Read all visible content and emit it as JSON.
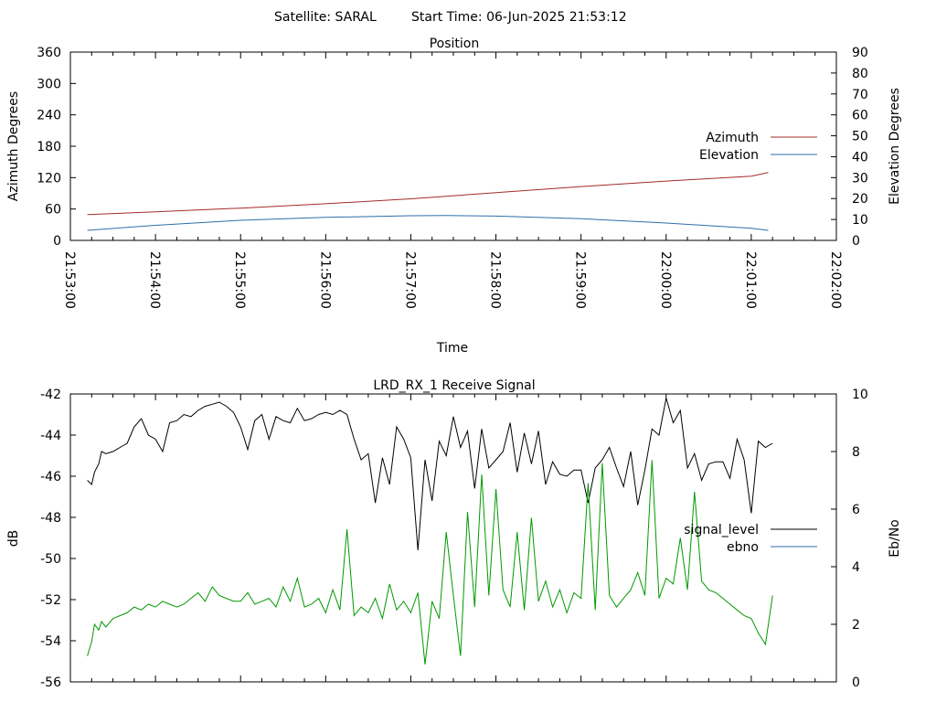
{
  "header": {
    "satellite_label": "Satellite: SARAL",
    "start_time_label": "Start Time: 06-Jun-2025 21:53:12"
  },
  "colors": {
    "azimuth": "#a52a2a",
    "elevation": "#2f6ea8",
    "signal_level": "#000000",
    "ebno": "#009900",
    "ebno_legend": "#2f6ea8",
    "axis": "#000000"
  },
  "chart_data": [
    {
      "type": "line",
      "title": "Position",
      "xlabel": "Time",
      "ylabel": "Azimuth Degrees",
      "y2label": "Elevation Degrees",
      "x_ticks": [
        "21:53:00",
        "21:54:00",
        "21:55:00",
        "21:56:00",
        "21:57:00",
        "21:58:00",
        "21:59:00",
        "22:00:00",
        "22:01:00",
        "22:02:00"
      ],
      "xlim_seconds": [
        0,
        540
      ],
      "ylim": [
        0,
        360
      ],
      "y_ticks": [
        0,
        60,
        120,
        180,
        240,
        300,
        360
      ],
      "y2lim": [
        0,
        90
      ],
      "y2_ticks": [
        0,
        10,
        20,
        30,
        40,
        50,
        60,
        70,
        80,
        90
      ],
      "legend_position": "right",
      "series": [
        {
          "name": "Azimuth",
          "axis": "y",
          "color_key": "azimuth",
          "x_seconds": [
            12,
            60,
            120,
            180,
            240,
            300,
            360,
            420,
            480,
            492
          ],
          "values": [
            49.5,
            54.5,
            61.7,
            70,
            79.5,
            91.2,
            103,
            113.5,
            122.7,
            129.8
          ]
        },
        {
          "name": "Elevation",
          "axis": "y2",
          "color_key": "elevation",
          "x_seconds": [
            12,
            60,
            120,
            180,
            240,
            265,
            300,
            360,
            420,
            480,
            492
          ],
          "values": [
            4.8,
            7.2,
            9.6,
            11.0,
            11.8,
            11.9,
            11.6,
            10.4,
            8.3,
            5.8,
            4.8
          ]
        }
      ]
    },
    {
      "type": "line",
      "title": "LRD_RX_1 Receive Signal",
      "ylabel": "dB",
      "y2label": "Eb/No",
      "xlim_seconds": [
        0,
        540
      ],
      "ylim": [
        -56,
        -42
      ],
      "y_ticks": [
        -56,
        -54,
        -52,
        -50,
        -48,
        -46,
        -44,
        -42
      ],
      "y2lim": [
        0,
        10
      ],
      "y2_ticks": [
        0,
        2,
        4,
        6,
        8,
        10
      ],
      "legend_position": "right",
      "series": [
        {
          "name": "signal_level",
          "axis": "y",
          "color_key": "signal_level",
          "x_seconds": [
            12,
            15,
            17,
            20,
            22,
            25,
            30,
            35,
            40,
            45,
            50,
            55,
            60,
            65,
            70,
            75,
            80,
            85,
            90,
            95,
            100,
            105,
            110,
            115,
            120,
            125,
            130,
            135,
            140,
            145,
            150,
            155,
            160,
            165,
            170,
            175,
            180,
            185,
            190,
            195,
            200,
            205,
            210,
            215,
            220,
            225,
            230,
            235,
            240,
            245,
            250,
            255,
            260,
            265,
            270,
            275,
            280,
            285,
            290,
            295,
            300,
            305,
            310,
            315,
            320,
            325,
            330,
            335,
            340,
            345,
            350,
            355,
            360,
            365,
            370,
            375,
            380,
            385,
            390,
            395,
            400,
            405,
            410,
            415,
            420,
            425,
            430,
            435,
            440,
            445,
            450,
            455,
            460,
            465,
            470,
            475,
            480,
            485,
            490,
            495
          ],
          "values": [
            -46.2,
            -46.4,
            -45.8,
            -45.4,
            -44.8,
            -44.9,
            -44.8,
            -44.6,
            -44.4,
            -43.6,
            -43.2,
            -44.0,
            -44.2,
            -44.8,
            -43.4,
            -43.3,
            -43.0,
            -43.1,
            -42.8,
            -42.6,
            -42.5,
            -42.4,
            -42.6,
            -42.9,
            -43.6,
            -44.7,
            -43.3,
            -43.0,
            -44.2,
            -43.1,
            -43.3,
            -43.4,
            -42.7,
            -43.3,
            -43.2,
            -43.0,
            -42.9,
            -43.0,
            -42.8,
            -43.0,
            -44.2,
            -45.2,
            -44.9,
            -47.3,
            -45.1,
            -46.4,
            -43.6,
            -44.2,
            -45.1,
            -49.6,
            -45.2,
            -47.2,
            -44.3,
            -45.0,
            -43.1,
            -44.6,
            -43.8,
            -46.6,
            -43.7,
            -45.6,
            -45.2,
            -44.8,
            -43.4,
            -45.8,
            -43.9,
            -45.4,
            -43.8,
            -46.4,
            -45.3,
            -45.9,
            -46.0,
            -45.7,
            -45.7,
            -47.3,
            -45.6,
            -45.2,
            -44.6,
            -45.6,
            -46.5,
            -44.8,
            -47.4,
            -45.7,
            -43.7,
            -44.0,
            -42.2,
            -43.4,
            -42.8,
            -45.6,
            -44.9,
            -46.2,
            -45.4,
            -45.3,
            -45.3,
            -46.1,
            -44.2,
            -45.2,
            -47.8,
            -44.3,
            -44.6,
            -44.4
          ]
        },
        {
          "name": "ebno",
          "axis": "y2",
          "color_key": "ebno",
          "legend_color_key": "ebno_legend",
          "x_seconds": [
            12,
            15,
            17,
            20,
            22,
            25,
            30,
            35,
            40,
            45,
            50,
            55,
            60,
            65,
            70,
            75,
            80,
            85,
            90,
            95,
            100,
            105,
            110,
            115,
            120,
            125,
            130,
            135,
            140,
            145,
            150,
            155,
            160,
            165,
            170,
            175,
            180,
            185,
            190,
            195,
            200,
            205,
            210,
            215,
            220,
            225,
            230,
            235,
            240,
            245,
            250,
            255,
            260,
            265,
            270,
            275,
            280,
            285,
            290,
            295,
            300,
            305,
            310,
            315,
            320,
            325,
            330,
            335,
            340,
            345,
            350,
            355,
            360,
            365,
            370,
            375,
            380,
            385,
            390,
            395,
            400,
            405,
            410,
            415,
            420,
            425,
            430,
            435,
            440,
            445,
            450,
            455,
            460,
            465,
            470,
            475,
            480,
            485,
            490,
            495
          ],
          "values": [
            0.9,
            1.4,
            2.0,
            1.8,
            2.1,
            1.9,
            2.2,
            2.3,
            2.4,
            2.6,
            2.5,
            2.7,
            2.6,
            2.8,
            2.7,
            2.6,
            2.7,
            2.9,
            3.1,
            2.8,
            3.3,
            3.0,
            2.9,
            2.8,
            2.8,
            3.1,
            2.7,
            2.8,
            2.9,
            2.6,
            3.3,
            2.8,
            3.6,
            2.6,
            2.7,
            2.9,
            2.4,
            3.2,
            2.5,
            5.3,
            2.3,
            2.6,
            2.4,
            2.9,
            2.2,
            3.4,
            2.5,
            2.8,
            2.4,
            3.1,
            0.6,
            2.8,
            2.2,
            5.2,
            3.0,
            0.9,
            5.9,
            2.6,
            7.2,
            3.0,
            6.7,
            3.2,
            2.6,
            5.2,
            2.5,
            5.7,
            2.8,
            3.5,
            2.6,
            3.2,
            2.4,
            3.1,
            2.9,
            6.9,
            2.5,
            7.6,
            3.0,
            2.6,
            2.9,
            3.2,
            3.8,
            3.0,
            7.7,
            2.9,
            3.6,
            3.4,
            5.0,
            3.2,
            6.6,
            3.5,
            3.2,
            3.1,
            2.9,
            2.7,
            2.5,
            2.3,
            2.2,
            1.7,
            1.3,
            3.0
          ]
        }
      ]
    }
  ]
}
